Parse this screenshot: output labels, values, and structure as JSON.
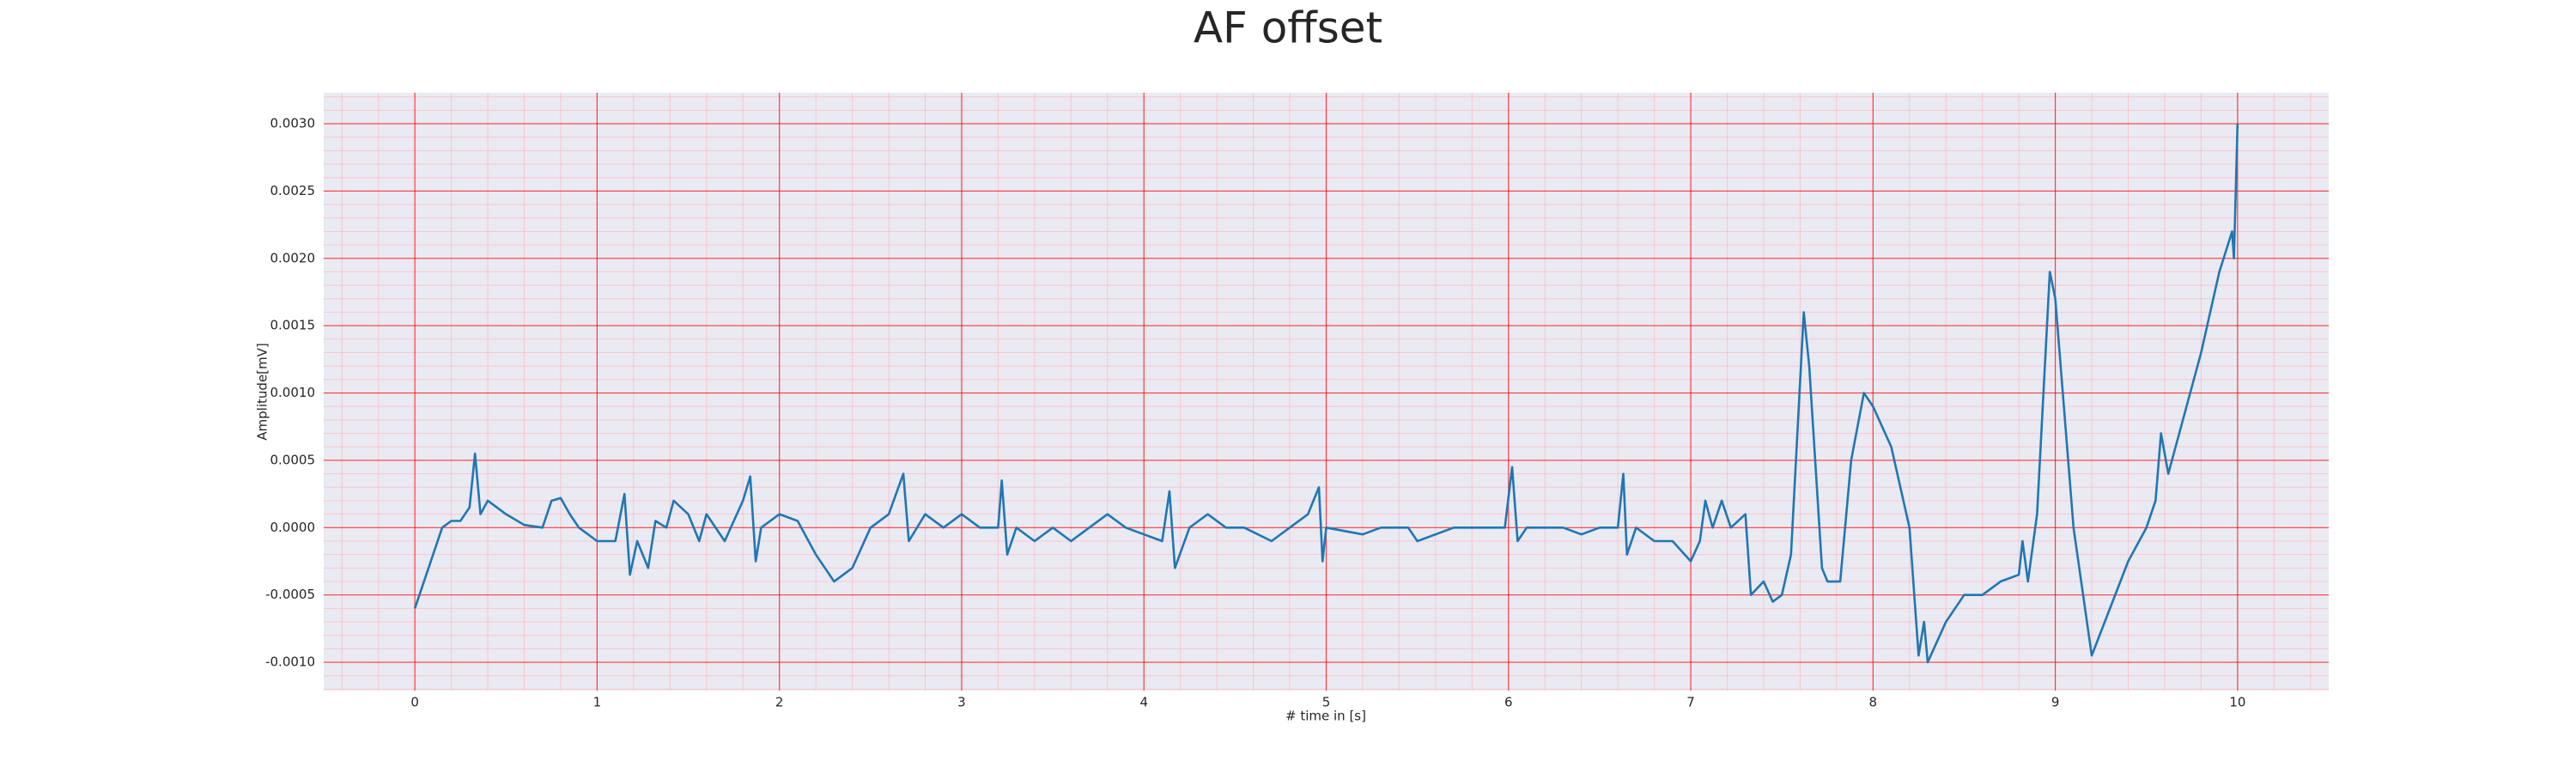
{
  "chart_data": {
    "type": "line",
    "title": "AF offset",
    "x_label": "# time in [s]",
    "y_label": "Amplitude[mV]",
    "xlim": [
      -0.5,
      10.5
    ],
    "ylim": [
      -0.00121,
      0.00323
    ],
    "xticks": [
      0,
      1,
      2,
      3,
      4,
      5,
      6,
      7,
      8,
      9,
      10
    ],
    "yticks": [
      {
        "value": -0.001,
        "label": "-0.0010"
      },
      {
        "value": -0.0005,
        "label": "-0.0005"
      },
      {
        "value": 0,
        "label": "0.0000"
      },
      {
        "value": 0.0005,
        "label": "0.0005"
      },
      {
        "value": 0.001,
        "label": "0.0010"
      },
      {
        "value": 0.0015,
        "label": "0.0015"
      },
      {
        "value": 0.002,
        "label": "0.0020"
      },
      {
        "value": 0.0025,
        "label": "0.0025"
      },
      {
        "value": 0.003,
        "label": "0.0030"
      }
    ],
    "grid": true,
    "minor_grid": true,
    "grid_color": "#ff0000",
    "minor_grid_color": "#ffb6c1",
    "background": "#eaeaf2",
    "series": [
      {
        "color": "#1f77b4",
        "x": [
          0,
          0.05,
          0.1,
          0.15,
          0.2,
          0.25,
          0.3,
          0.33,
          0.36,
          0.4,
          0.5,
          0.6,
          0.7,
          0.75,
          0.8,
          0.85,
          0.9,
          1.0,
          1.1,
          1.15,
          1.18,
          1.22,
          1.28,
          1.32,
          1.38,
          1.42,
          1.5,
          1.56,
          1.6,
          1.7,
          1.8,
          1.84,
          1.87,
          1.9,
          2.0,
          2.1,
          2.2,
          2.3,
          2.4,
          2.5,
          2.6,
          2.68,
          2.71,
          2.8,
          2.9,
          3.0,
          3.1,
          3.2,
          3.22,
          3.25,
          3.3,
          3.4,
          3.5,
          3.6,
          3.7,
          3.8,
          3.9,
          4.0,
          4.1,
          4.14,
          4.17,
          4.25,
          4.35,
          4.45,
          4.55,
          4.7,
          4.8,
          4.9,
          4.96,
          4.98,
          5.0,
          5.2,
          5.3,
          5.45,
          5.5,
          5.7,
          5.9,
          5.98,
          6.02,
          6.05,
          6.1,
          6.3,
          6.4,
          6.5,
          6.6,
          6.63,
          6.65,
          6.7,
          6.8,
          6.9,
          7.0,
          7.05,
          7.08,
          7.12,
          7.17,
          7.22,
          7.3,
          7.33,
          7.4,
          7.45,
          7.5,
          7.55,
          7.62,
          7.65,
          7.72,
          7.75,
          7.82,
          7.88,
          7.95,
          8.0,
          8.1,
          8.2,
          8.25,
          8.28,
          8.3,
          8.4,
          8.5,
          8.6,
          8.7,
          8.8,
          8.82,
          8.85,
          8.9,
          8.97,
          9.0,
          9.1,
          9.2,
          9.3,
          9.4,
          9.5,
          9.55,
          9.58,
          9.62,
          9.7,
          9.8,
          9.9,
          9.97,
          9.98,
          10.0
        ],
        "values": [
          -0.0006,
          -0.0004,
          -0.0002,
          0,
          5e-05,
          5e-05,
          0.00015,
          0.00055,
          0.0001,
          0.0002,
          0.0001,
          2e-05,
          0,
          0.0002,
          0.00022,
          0.0001,
          0,
          -0.0001,
          -0.0001,
          0.00025,
          -0.00035,
          -0.0001,
          -0.0003,
          5e-05,
          0,
          0.0002,
          0.0001,
          -0.0001,
          0.0001,
          -0.0001,
          0.0002,
          0.00038,
          -0.00025,
          0,
          0.0001,
          5e-05,
          -0.0002,
          -0.0004,
          -0.0003,
          0,
          0.0001,
          0.0004,
          -0.0001,
          0.0001,
          0,
          0.0001,
          0,
          0,
          0.00035,
          -0.0002,
          0,
          -0.0001,
          0,
          -0.0001,
          0,
          0.0001,
          0,
          -5e-05,
          -0.0001,
          0.00027,
          -0.0003,
          0,
          0.0001,
          0,
          0,
          -0.0001,
          0,
          0.0001,
          0.0003,
          -0.00025,
          0,
          -5e-05,
          0,
          0,
          -0.0001,
          0,
          0,
          0,
          0.00045,
          -0.0001,
          0,
          0,
          -5e-05,
          0,
          0,
          0.0004,
          -0.0002,
          0,
          -0.0001,
          -0.0001,
          -0.00025,
          -0.0001,
          0.0002,
          0,
          0.0002,
          0,
          0.0001,
          -0.0005,
          -0.0004,
          -0.00055,
          -0.0005,
          -0.0002,
          0.0016,
          0.0012,
          -0.0003,
          -0.0004,
          -0.0004,
          0.0005,
          0.001,
          0.0009,
          0.0006,
          0,
          -0.00095,
          -0.0007,
          -0.001,
          -0.0007,
          -0.0005,
          -0.0005,
          -0.0004,
          -0.00035,
          -0.0001,
          -0.0004,
          0.0001,
          0.0019,
          0.0017,
          0,
          -0.00095,
          -0.0006,
          -0.00025,
          0,
          0.0002,
          0.0007,
          0.0004,
          0.0008,
          0.0013,
          0.0019,
          0.0022,
          0.002,
          0.003
        ]
      }
    ]
  }
}
